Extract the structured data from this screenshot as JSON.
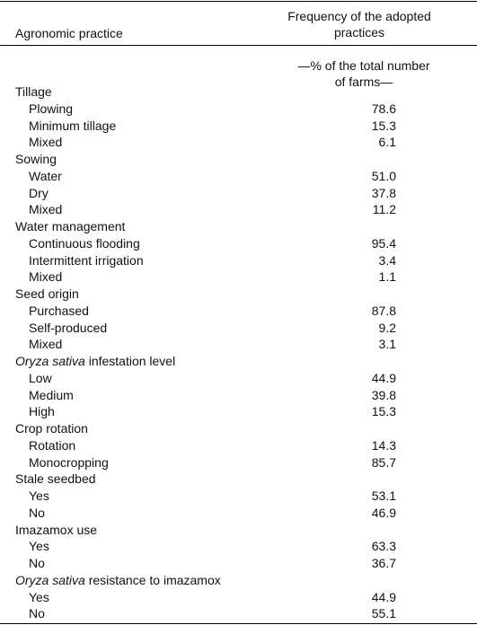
{
  "header": {
    "col1": "Agronomic practice",
    "col2": "Frequency of the adopted practices",
    "unit": "—% of the total number of farms—"
  },
  "groups": [
    {
      "label": "Tillage",
      "rows": [
        [
          "Plowing",
          "78.6"
        ],
        [
          "Minimum tillage",
          "15.3"
        ],
        [
          "Mixed",
          "6.1"
        ]
      ]
    },
    {
      "label": "Sowing",
      "rows": [
        [
          "Water",
          "51.0"
        ],
        [
          "Dry",
          "37.8"
        ],
        [
          "Mixed",
          "11.2"
        ]
      ]
    },
    {
      "label": "Water management",
      "rows": [
        [
          "Continuous flooding",
          "95.4"
        ],
        [
          "Intermittent irrigation",
          "3.4"
        ],
        [
          "Mixed",
          "1.1"
        ]
      ]
    },
    {
      "label": "Seed origin",
      "rows": [
        [
          "Purchased",
          "87.8"
        ],
        [
          "Self-produced",
          "9.2"
        ],
        [
          "Mixed",
          "3.1"
        ]
      ]
    },
    {
      "label_italic": "Oryza sativa",
      "label": " infestation level",
      "rows": [
        [
          "Low",
          "44.9"
        ],
        [
          "Medium",
          "39.8"
        ],
        [
          "High",
          "15.3"
        ]
      ]
    },
    {
      "label": "Crop rotation",
      "rows": [
        [
          "Rotation",
          "14.3"
        ],
        [
          "Monocropping",
          "85.7"
        ]
      ]
    },
    {
      "label": "Stale seedbed",
      "rows": [
        [
          "Yes",
          "53.1"
        ],
        [
          "No",
          "46.9"
        ]
      ]
    },
    {
      "label": "Imazamox use",
      "rows": [
        [
          "Yes",
          "63.3"
        ],
        [
          "No",
          "36.7"
        ]
      ]
    },
    {
      "label_italic": "Oryza sativa",
      "label": " resistance to imazamox",
      "rows": [
        [
          "Yes",
          "44.9"
        ],
        [
          "No",
          "55.1"
        ]
      ]
    }
  ]
}
